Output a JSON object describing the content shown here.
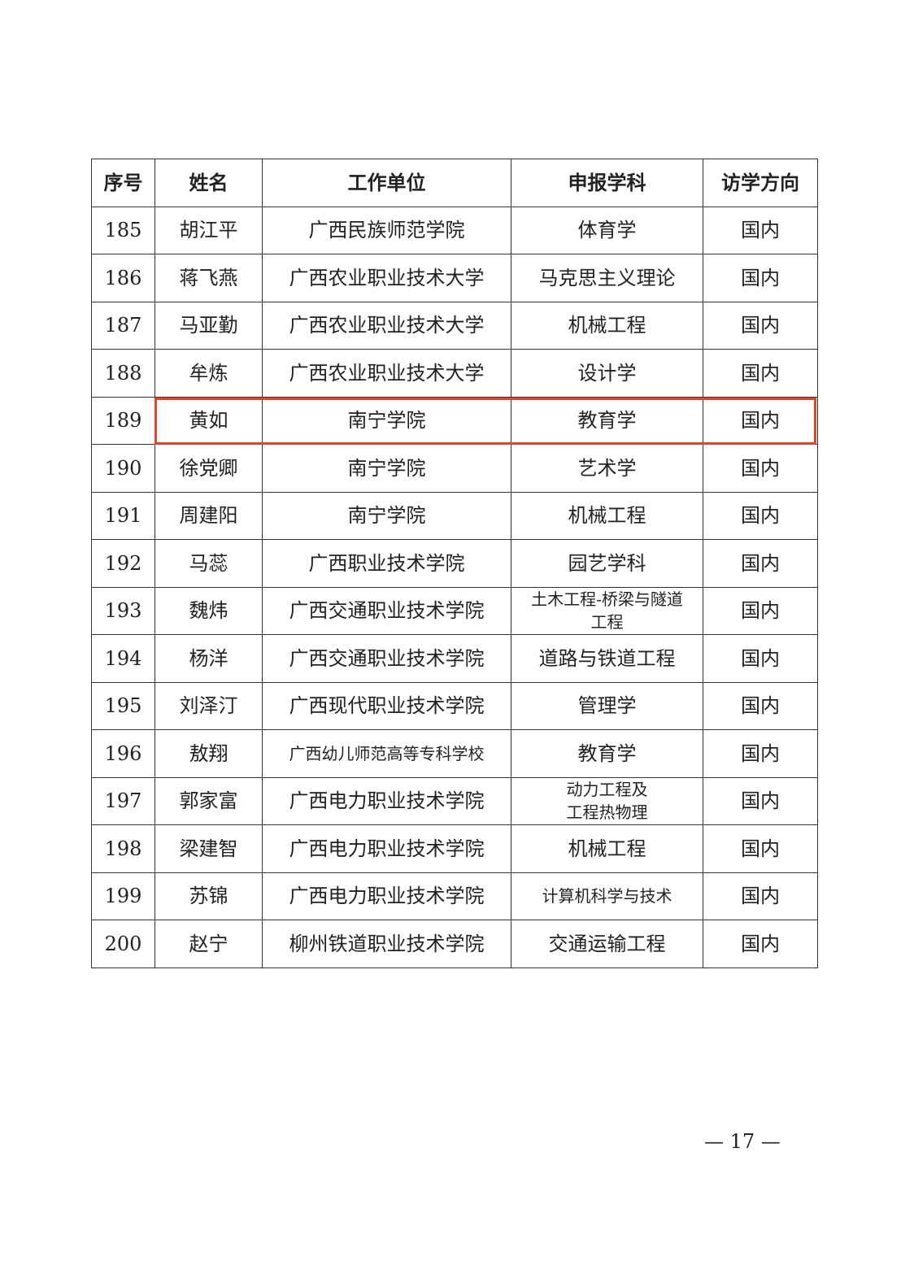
{
  "table": {
    "headers": [
      "序号",
      "姓名",
      "工作单位",
      "申报学科",
      "访学方向"
    ],
    "rows": [
      [
        "185",
        "胡江平",
        "广西民族师范学院",
        "体育学",
        "国内"
      ],
      [
        "186",
        "蒋飞燕",
        "广西农业职业技术大学",
        "马克思主义理论",
        "国内"
      ],
      [
        "187",
        "马亚勤",
        "广西农业职业技术大学",
        "机械工程",
        "国内"
      ],
      [
        "188",
        "牟炼",
        "广西农业职业技术大学",
        "设计学",
        "国内"
      ],
      [
        "189",
        "黄如",
        "南宁学院",
        "教育学",
        "国内"
      ],
      [
        "190",
        "徐党卿",
        "南宁学院",
        "艺术学",
        "国内"
      ],
      [
        "191",
        "周建阳",
        "南宁学院",
        "机械工程",
        "国内"
      ],
      [
        "192",
        "马蕊",
        "广西职业技术学院",
        "园艺学科",
        "国内"
      ],
      [
        "193",
        "魏炜",
        "广西交通职业技术学院",
        "土木工程-桥梁与隧道\n工程",
        "国内"
      ],
      [
        "194",
        "杨洋",
        "广西交通职业技术学院",
        "道路与铁道工程",
        "国内"
      ],
      [
        "195",
        "刘泽汀",
        "广西现代职业技术学院",
        "管理学",
        "国内"
      ],
      [
        "196",
        "敖翔",
        "广西幼儿师范高等专科学校",
        "教育学",
        "国内"
      ],
      [
        "197",
        "郭家富",
        "广西电力职业技术学院",
        "动力工程及\n工程热物理",
        "国内"
      ],
      [
        "198",
        "梁建智",
        "广西电力职业技术学院",
        "机械工程",
        "国内"
      ],
      [
        "199",
        "苏锦",
        "广西电力职业技术学院",
        "计算机科学与技术",
        "国内"
      ],
      [
        "200",
        "赵宁",
        "柳州铁道职业技术学院",
        "交通运输工程",
        "国内"
      ]
    ],
    "highlighted_row": "189",
    "highlight_color": "#e0442c"
  },
  "footer": {
    "page_number": "— 17 —"
  }
}
